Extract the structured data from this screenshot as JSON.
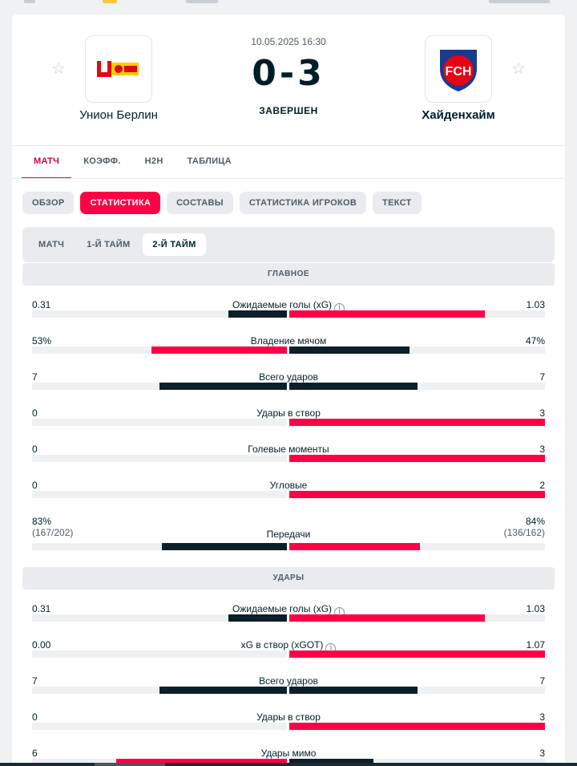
{
  "match": {
    "datetime": "10.05.2025 16:30",
    "score": "0-3",
    "status": "ЗАВЕРШЕН",
    "home": {
      "name": "Унион Берлин",
      "logo": "union-berlin-logo"
    },
    "away": {
      "name": "Хайденхайм",
      "logo": "heidenheim-logo",
      "logo_text": "FCH"
    }
  },
  "main_tabs": [
    {
      "label": "МАТЧ",
      "active": true
    },
    {
      "label": "КОЭФФ.",
      "active": false
    },
    {
      "label": "H2H",
      "active": false
    },
    {
      "label": "ТАБЛИЦА",
      "active": false
    }
  ],
  "chips": [
    {
      "label": "ОБЗОР",
      "active": false
    },
    {
      "label": "СТАТИСТИКА",
      "active": true
    },
    {
      "label": "СОСТАВЫ",
      "active": false
    },
    {
      "label": "СТАТИСТИКА ИГРОКОВ",
      "active": false
    },
    {
      "label": "ТЕКСТ",
      "active": false
    }
  ],
  "subtabs": [
    {
      "label": "МАТЧ",
      "active": false
    },
    {
      "label": "1-Й ТАЙМ",
      "active": false
    },
    {
      "label": "2-Й ТАЙМ",
      "active": true
    }
  ],
  "sections": {
    "main": {
      "title": "ГЛАВНОЕ",
      "stats": [
        {
          "label": "Ожидаемые голы (xG)",
          "info": true,
          "home": "0.31",
          "away": "1.03",
          "home_share": 0.23,
          "away_share": 0.765,
          "home_lead": false
        },
        {
          "label": "Владение мячом",
          "info": false,
          "home": "53%",
          "away": "47%",
          "home_share": 0.53,
          "away_share": 0.47,
          "home_lead": true
        },
        {
          "label": "Всего ударов",
          "info": false,
          "home": "7",
          "away": "7",
          "home_share": 0.5,
          "away_share": 0.5,
          "home_lead": false,
          "even": true
        },
        {
          "label": "Удары в створ",
          "info": false,
          "home": "0",
          "away": "3",
          "home_share": 0,
          "away_share": 1,
          "home_lead": false
        },
        {
          "label": "Голевые моменты",
          "info": false,
          "home": "0",
          "away": "3",
          "home_share": 0,
          "away_share": 1,
          "home_lead": false
        },
        {
          "label": "Угловые",
          "info": false,
          "home": "0",
          "away": "2",
          "home_share": 0,
          "away_share": 1,
          "home_lead": false
        },
        {
          "label": "Передачи",
          "info": false,
          "home": "83%",
          "home_sub": "(167/202)",
          "away": "84%",
          "away_sub": "(136/162)",
          "home_share": 0.49,
          "away_share": 0.51,
          "home_lead": false
        }
      ]
    },
    "shots": {
      "title": "УДАРЫ",
      "stats": [
        {
          "label": "Ожидаемые голы (xG)",
          "info": true,
          "home": "0.31",
          "away": "1.03",
          "home_share": 0.23,
          "away_share": 0.765,
          "home_lead": false
        },
        {
          "label": "xG в створ (xGOT)",
          "info": true,
          "home": "0.00",
          "away": "1.07",
          "home_share": 0,
          "away_share": 1,
          "home_lead": false
        },
        {
          "label": "Всего ударов",
          "info": false,
          "home": "7",
          "away": "7",
          "home_share": 0.5,
          "away_share": 0.5,
          "home_lead": false,
          "even": true
        },
        {
          "label": "Удары в створ",
          "info": false,
          "home": "0",
          "away": "3",
          "home_share": 0,
          "away_share": 1,
          "home_lead": false
        },
        {
          "label": "Удары мимо",
          "info": false,
          "home": "6",
          "away": "3",
          "home_share": 0.67,
          "away_share": 0.33,
          "home_lead": true
        }
      ]
    }
  },
  "icons": {
    "favorite": "star-outline-icon",
    "info": "info-icon"
  },
  "colors": {
    "accent": "#ff0046",
    "dark_bar": "#0d1f28",
    "track": "#eef0f2"
  }
}
